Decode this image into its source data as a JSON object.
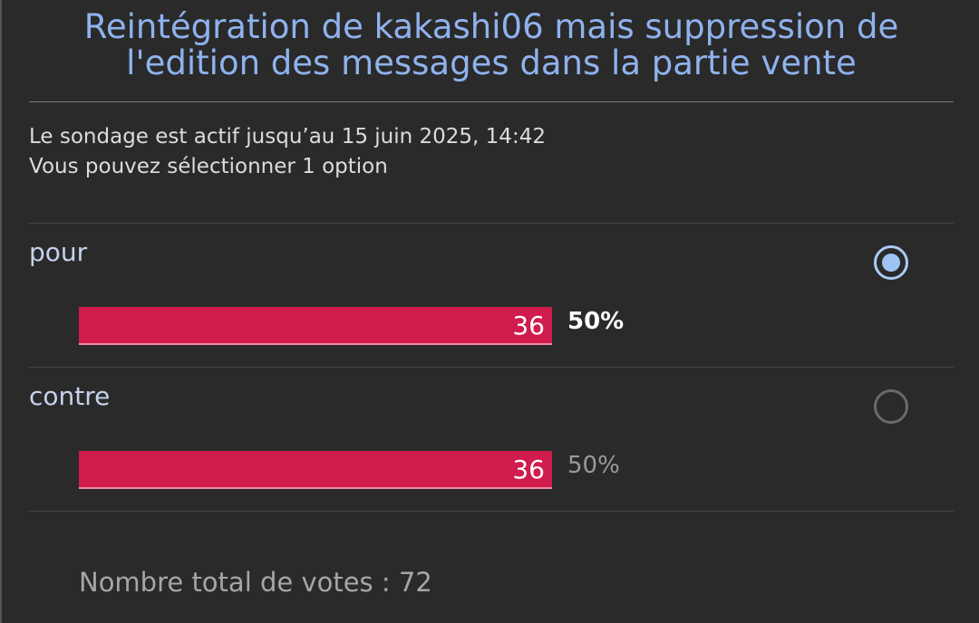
{
  "poll": {
    "title": "Reintégration de kakashi06 mais suppression de l'edition des messages dans la partie vente",
    "info": [
      "Le sondage est actif jusqu’au 15 juin 2025, 14:42",
      "Vous pouvez sélectionner 1 option"
    ],
    "options": [
      {
        "label": "pour",
        "votes": 36,
        "percent": 50,
        "percent_label": "50%",
        "selected": true
      },
      {
        "label": "contre",
        "votes": 36,
        "percent": 50,
        "percent_label": "50%",
        "selected": false
      }
    ],
    "total_label": "Nombre total de votes :",
    "total": 72
  }
}
